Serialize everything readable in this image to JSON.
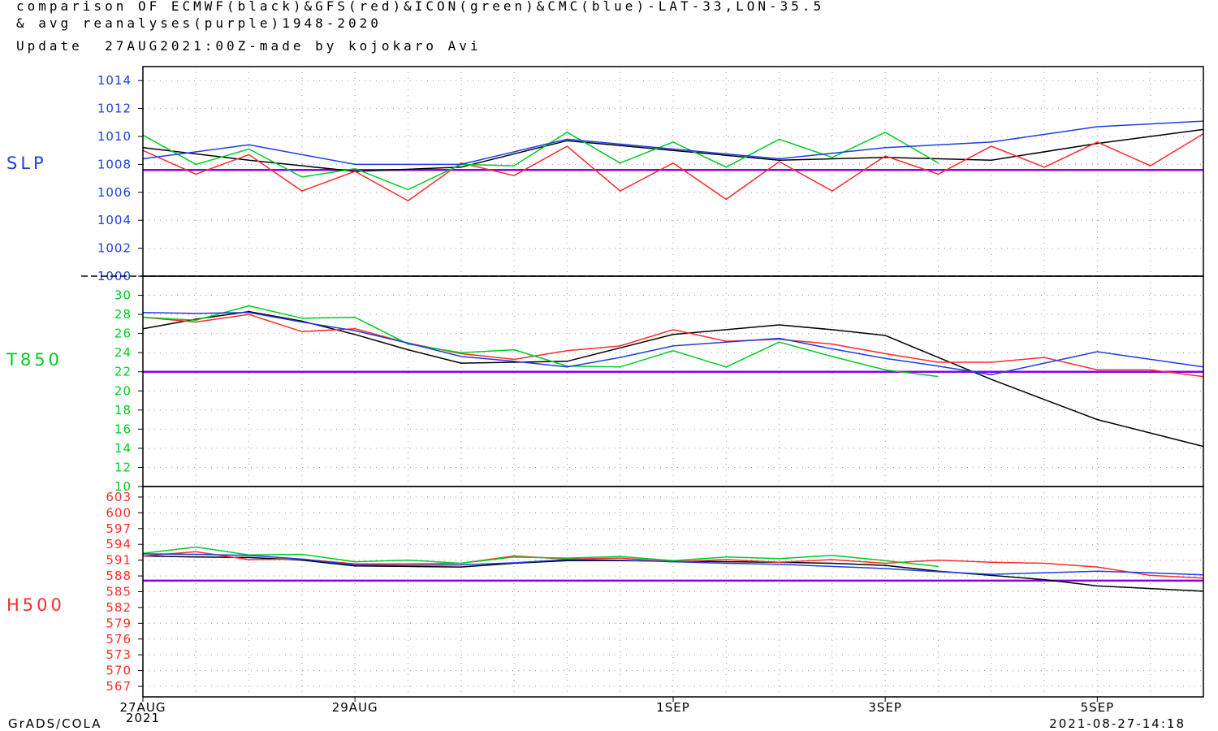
{
  "header": {
    "line1": "comparison OF ECMWF(black)&GFS(red)&ICON(green)&CMC(blue)-LAT-33,LON-35.5",
    "line2": "& avg reanalyses(purple)1948-2020",
    "line3": "Update  27AUG2021:00Z-made by kojokaro Avi"
  },
  "footer": {
    "left": "GrADS/COLA",
    "right": "2021-08-27-14:18"
  },
  "colors": {
    "ECMWF": "#000000",
    "GFS": "#ff2a2a",
    "ICON": "#00cc22",
    "CMC": "#1f3de0",
    "reanalysis": "#8a00e6",
    "SLP": "#1f3de0",
    "T850": "#00cc22",
    "H500": "#ff2a2a"
  },
  "chart_data": {
    "type": "line",
    "x_ticks": [
      "27AUG",
      "29AUG",
      "1SEP",
      "3SEP",
      "5SEP"
    ],
    "x_tick_sub": "2021",
    "x_range_days": [
      0,
      10
    ],
    "panels": [
      {
        "id": "SLP",
        "label": "SLP",
        "ylim": [
          1000,
          1015
        ],
        "yticks": [
          "1000",
          "1002",
          "1004",
          "1006",
          "1008",
          "1010",
          "1012",
          "1014"
        ],
        "baseline": 1007.6,
        "series": [
          {
            "model": "ECMWF",
            "x": [
              0,
              1,
              2,
              3,
              4,
              5,
              6,
              7,
              8,
              9,
              10
            ],
            "y": [
              1009.2,
              1008.3,
              1007.5,
              1007.8,
              1009.7,
              1009.0,
              1008.3,
              1008.5,
              1008.3,
              1009.5,
              1010.5
            ]
          },
          {
            "model": "GFS",
            "x": [
              0,
              0.5,
              1,
              1.5,
              2,
              2.5,
              3,
              3.5,
              4,
              4.5,
              5,
              5.5,
              6,
              6.5,
              7,
              7.5,
              8,
              8.5,
              9,
              9.5,
              10
            ],
            "y": [
              1009.0,
              1007.3,
              1008.7,
              1006.1,
              1007.5,
              1005.4,
              1008.1,
              1007.2,
              1009.3,
              1006.1,
              1008.1,
              1005.5,
              1008.2,
              1006.1,
              1008.6,
              1007.3,
              1009.3,
              1007.8,
              1009.6,
              1007.9,
              1010.2
            ]
          },
          {
            "model": "ICON",
            "x": [
              0,
              0.5,
              1,
              1.5,
              2,
              2.5,
              3,
              3.5,
              4,
              4.5,
              5,
              5.5,
              6,
              6.5,
              7,
              7.5
            ],
            "y": [
              1010.1,
              1008.0,
              1009.1,
              1007.1,
              1007.7,
              1006.2,
              1008.0,
              1007.9,
              1010.3,
              1008.1,
              1009.6,
              1007.8,
              1009.8,
              1008.5,
              1010.3,
              1008.1
            ]
          },
          {
            "model": "CMC",
            "x": [
              0,
              1,
              2,
              3,
              4,
              5,
              6,
              7,
              8,
              9,
              10
            ],
            "y": [
              1008.4,
              1009.4,
              1008.0,
              1008.0,
              1009.8,
              1009.1,
              1008.4,
              1009.2,
              1009.6,
              1010.7,
              1011.1
            ]
          }
        ]
      },
      {
        "id": "T850",
        "label": "T850",
        "ylim": [
          10,
          32
        ],
        "yticks": [
          "10",
          "12",
          "14",
          "16",
          "18",
          "20",
          "22",
          "24",
          "26",
          "28",
          "30"
        ],
        "baseline": 22.0,
        "series": [
          {
            "model": "ECMWF",
            "x": [
              0,
              0.5,
              1,
              1.5,
              2,
              2.5,
              3,
              3.5,
              4,
              4.5,
              5,
              5.5,
              6,
              6.5,
              7,
              7.5,
              8,
              8.5,
              9,
              9.5,
              10
            ],
            "y": [
              26.5,
              27.5,
              28.3,
              27.3,
              25.9,
              24.3,
              22.9,
              23.0,
              23.1,
              24.5,
              25.9,
              26.4,
              26.9,
              26.4,
              25.8,
              23.5,
              21.2,
              19.1,
              17.0,
              15.6,
              14.2
            ]
          },
          {
            "model": "GFS",
            "x": [
              0,
              0.5,
              1,
              1.5,
              2,
              2.5,
              3,
              3.5,
              4,
              4.5,
              5,
              5.5,
              6,
              6.5,
              7,
              7.5,
              8,
              8.5,
              9,
              9.5,
              10
            ],
            "y": [
              27.7,
              27.2,
              28.0,
              26.2,
              26.5,
              25.0,
              23.9,
              23.3,
              24.2,
              24.7,
              26.4,
              25.2,
              25.4,
              24.9,
              23.9,
              23.0,
              23.0,
              23.5,
              22.2,
              22.2,
              21.5
            ]
          },
          {
            "model": "ICON",
            "x": [
              0,
              0.5,
              1,
              1.5,
              2,
              2.5,
              3,
              3.5,
              4,
              4.5,
              5,
              5.5,
              6,
              6.5,
              7,
              7.5
            ],
            "y": [
              27.7,
              27.4,
              28.9,
              27.6,
              27.7,
              24.9,
              24.0,
              24.3,
              22.6,
              22.5,
              24.2,
              22.5,
              25.1,
              23.6,
              22.2,
              21.5
            ]
          },
          {
            "model": "CMC",
            "x": [
              0,
              0.5,
              1,
              1.5,
              2,
              2.5,
              3,
              3.5,
              4,
              4.5,
              5,
              5.5,
              6,
              6.5,
              7,
              7.5,
              8,
              8.5,
              9,
              9.5,
              10
            ],
            "y": [
              28.2,
              28.1,
              28.2,
              27.2,
              26.3,
              25.0,
              23.6,
              23.1,
              22.5,
              23.5,
              24.7,
              25.1,
              25.5,
              24.4,
              23.4,
              22.6,
              21.7,
              22.9,
              24.1,
              23.3,
              22.5
            ]
          }
        ]
      },
      {
        "id": "H500",
        "label": "H500",
        "ylim": [
          565,
          605
        ],
        "yticks": [
          "567",
          "570",
          "573",
          "576",
          "579",
          "582",
          "585",
          "588",
          "591",
          "594",
          "597",
          "600",
          "603"
        ],
        "baseline": 587.1,
        "series": [
          {
            "model": "ECMWF",
            "x": [
              0,
              0.5,
              1,
              1.5,
              2,
              2.5,
              3,
              3.5,
              4,
              4.5,
              5,
              5.5,
              6,
              6.5,
              7,
              7.5,
              8,
              8.5,
              9,
              9.5,
              10
            ],
            "y": [
              591.8,
              591.6,
              591.5,
              591.0,
              589.9,
              589.8,
              589.7,
              590.4,
              590.9,
              590.9,
              590.8,
              590.7,
              590.6,
              590.4,
              590.0,
              588.9,
              588.1,
              587.3,
              586.1,
              585.6,
              585.1
            ]
          },
          {
            "model": "GFS",
            "x": [
              0,
              0.5,
              1,
              1.5,
              2,
              2.5,
              3,
              3.5,
              4,
              4.5,
              5,
              5.5,
              6,
              6.5,
              7,
              7.5,
              8,
              8.5,
              9,
              9.5,
              10
            ],
            "y": [
              591.8,
              592.6,
              591.1,
              591.2,
              590.3,
              590.3,
              590.4,
              591.8,
              591.2,
              591.4,
              590.7,
              591.1,
              590.6,
              591.1,
              590.4,
              591.0,
              590.6,
              590.4,
              589.7,
              588.1,
              587.6
            ]
          },
          {
            "model": "ICON",
            "x": [
              0,
              0.5,
              1,
              1.5,
              2,
              2.5,
              3,
              3.5,
              4,
              4.5,
              5,
              5.5,
              6,
              6.5,
              7,
              7.5
            ],
            "y": [
              592.3,
              593.5,
              592.0,
              592.1,
              590.7,
              591.0,
              590.4,
              591.6,
              591.4,
              591.7,
              590.9,
              591.6,
              591.3,
              591.9,
              590.9,
              589.8
            ]
          },
          {
            "model": "CMC",
            "x": [
              0,
              0.5,
              1,
              1.5,
              2,
              2.5,
              3,
              3.5,
              4,
              4.5,
              5,
              5.5,
              6,
              6.5,
              7,
              7.5,
              8,
              8.5,
              9,
              9.5,
              10
            ],
            "y": [
              592.2,
              592.1,
              591.9,
              591.2,
              590.1,
              590.0,
              590.1,
              590.5,
              591.1,
              591.0,
              590.7,
              590.4,
              590.2,
              589.8,
              589.4,
              588.8,
              588.3,
              588.6,
              588.9,
              588.6,
              588.2
            ]
          }
        ]
      }
    ]
  }
}
